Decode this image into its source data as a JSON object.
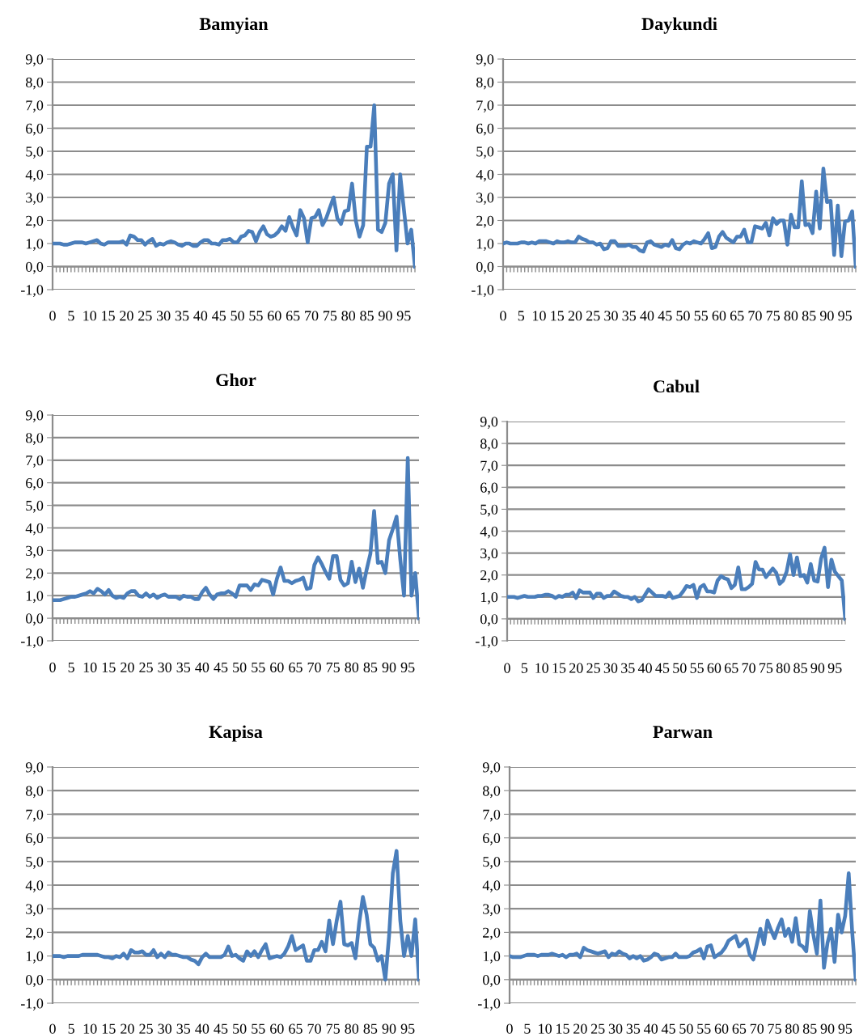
{
  "chart_data": [
    {
      "type": "line",
      "title": "Bamyian",
      "grid": "y",
      "line_style": "solid",
      "marker": "none",
      "ylim": [
        -1,
        9
      ],
      "yticks": [
        {
          "value": -1,
          "label": "-1,0"
        },
        {
          "value": 0,
          "label": "0,0"
        },
        {
          "value": 1,
          "label": "1,0"
        },
        {
          "value": 2,
          "label": "2,0"
        },
        {
          "value": 3,
          "label": "3,0"
        },
        {
          "value": 4,
          "label": "4,0"
        },
        {
          "value": 5,
          "label": "5,0"
        },
        {
          "value": 6,
          "label": "6,0"
        },
        {
          "value": 7,
          "label": "7,0"
        },
        {
          "value": 8,
          "label": "8,0"
        },
        {
          "value": 9,
          "label": "9,0"
        }
      ],
      "categories": [
        "0",
        null,
        null,
        null,
        null,
        "5",
        null,
        null,
        null,
        null,
        "10",
        null,
        null,
        null,
        null,
        "15",
        null,
        null,
        null,
        null,
        "20",
        null,
        null,
        null,
        null,
        "25",
        null,
        null,
        null,
        null,
        "30",
        null,
        null,
        null,
        null,
        "35",
        null,
        null,
        null,
        null,
        "40",
        null,
        null,
        null,
        null,
        "45",
        null,
        null,
        null,
        null,
        "50",
        null,
        null,
        null,
        null,
        "55",
        null,
        null,
        null,
        null,
        "60",
        null,
        null,
        null,
        null,
        "65",
        null,
        null,
        null,
        null,
        "70",
        null,
        null,
        null,
        null,
        "75",
        null,
        null,
        null,
        null,
        "80",
        null,
        null,
        null,
        null,
        "85",
        null,
        null,
        null,
        null,
        "90",
        null,
        null,
        null,
        null,
        "95",
        null,
        null,
        null
      ],
      "series": [
        {
          "color": "#4a7ebb",
          "values": [
            1.0,
            1.0,
            1.0,
            0.95,
            0.95,
            1.0,
            1.05,
            1.05,
            1.05,
            1.0,
            1.05,
            1.1,
            1.15,
            1.0,
            0.95,
            1.05,
            1.05,
            1.05,
            1.05,
            1.1,
            0.95,
            1.35,
            1.3,
            1.15,
            1.15,
            0.95,
            1.1,
            1.2,
            0.9,
            1.0,
            0.95,
            1.05,
            1.1,
            1.05,
            0.95,
            0.9,
            1.0,
            1.0,
            0.9,
            0.9,
            1.05,
            1.15,
            1.15,
            1.0,
            1.0,
            0.95,
            1.15,
            1.15,
            1.2,
            1.05,
            1.05,
            1.3,
            1.35,
            1.55,
            1.5,
            1.1,
            1.5,
            1.75,
            1.4,
            1.3,
            1.35,
            1.5,
            1.75,
            1.55,
            2.15,
            1.7,
            1.35,
            2.45,
            2.1,
            1.05,
            2.1,
            2.15,
            2.45,
            1.8,
            2.1,
            2.55,
            3.0,
            2.1,
            1.85,
            2.4,
            2.45,
            3.6,
            2.0,
            1.3,
            1.8,
            5.2,
            5.2,
            7.0,
            1.6,
            1.5,
            1.9,
            3.6,
            4.0,
            0.7,
            4.0,
            2.5,
            1.0,
            1.6,
            0.0
          ]
        }
      ]
    },
    {
      "type": "line",
      "title": "Daykundi",
      "grid": "y",
      "line_style": "solid",
      "marker": "none",
      "ylim": [
        -1,
        9
      ],
      "yticks": [
        {
          "value": -1,
          "label": "-1,0"
        },
        {
          "value": 0,
          "label": "0,0"
        },
        {
          "value": 1,
          "label": "1,0"
        },
        {
          "value": 2,
          "label": "2,0"
        },
        {
          "value": 3,
          "label": "3,0"
        },
        {
          "value": 4,
          "label": "4,0"
        },
        {
          "value": 5,
          "label": "5,0"
        },
        {
          "value": 6,
          "label": "6,0"
        },
        {
          "value": 7,
          "label": "7,0"
        },
        {
          "value": 8,
          "label": "8,0"
        },
        {
          "value": 9,
          "label": "9,0"
        }
      ],
      "categories": [
        "0",
        null,
        null,
        null,
        null,
        "5",
        null,
        null,
        null,
        null,
        "10",
        null,
        null,
        null,
        null,
        "15",
        null,
        null,
        null,
        null,
        "20",
        null,
        null,
        null,
        null,
        "25",
        null,
        null,
        null,
        null,
        "30",
        null,
        null,
        null,
        null,
        "35",
        null,
        null,
        null,
        null,
        "40",
        null,
        null,
        null,
        null,
        "45",
        null,
        null,
        null,
        null,
        "50",
        null,
        null,
        null,
        null,
        "55",
        null,
        null,
        null,
        null,
        "60",
        null,
        null,
        null,
        null,
        "65",
        null,
        null,
        null,
        null,
        "70",
        null,
        null,
        null,
        null,
        "75",
        null,
        null,
        null,
        null,
        "80",
        null,
        null,
        null,
        null,
        "85",
        null,
        null,
        null,
        null,
        "90",
        null,
        null,
        null,
        null,
        "95",
        null,
        null,
        null
      ],
      "series": [
        {
          "color": "#4a7ebb",
          "values": [
            1.0,
            1.05,
            1.0,
            1.0,
            1.0,
            1.05,
            1.05,
            1.0,
            1.05,
            1.0,
            1.1,
            1.1,
            1.1,
            1.05,
            1.0,
            1.1,
            1.05,
            1.05,
            1.1,
            1.05,
            1.05,
            1.3,
            1.2,
            1.15,
            1.05,
            1.05,
            0.95,
            1.0,
            0.75,
            0.8,
            1.1,
            1.1,
            0.9,
            0.9,
            0.9,
            0.95,
            0.85,
            0.85,
            0.7,
            0.65,
            1.05,
            1.1,
            0.95,
            0.9,
            0.85,
            0.95,
            0.9,
            1.15,
            0.8,
            0.75,
            0.95,
            1.05,
            1.0,
            1.1,
            1.05,
            1.0,
            1.2,
            1.45,
            0.8,
            0.85,
            1.3,
            1.5,
            1.25,
            1.15,
            1.05,
            1.3,
            1.3,
            1.6,
            1.05,
            1.05,
            1.75,
            1.7,
            1.65,
            1.9,
            1.35,
            2.1,
            1.85,
            2.0,
            2.0,
            0.95,
            2.25,
            1.7,
            1.7,
            3.7,
            1.8,
            1.85,
            1.45,
            3.25,
            1.65,
            4.25,
            2.8,
            2.85,
            0.5,
            2.65,
            0.45,
            1.95,
            2.0,
            2.4,
            0.0
          ]
        }
      ]
    },
    {
      "type": "line",
      "title": "Ghor",
      "grid": "y",
      "line_style": "solid",
      "marker": "none",
      "ylim": [
        -1,
        9
      ],
      "yticks": [
        {
          "value": -1,
          "label": "-1,0"
        },
        {
          "value": 0,
          "label": "0,0"
        },
        {
          "value": 1,
          "label": "1,0"
        },
        {
          "value": 2,
          "label": "2,0"
        },
        {
          "value": 3,
          "label": "3,0"
        },
        {
          "value": 4,
          "label": "4,0"
        },
        {
          "value": 5,
          "label": "5,0"
        },
        {
          "value": 6,
          "label": "6,0"
        },
        {
          "value": 7,
          "label": "7,0"
        },
        {
          "value": 8,
          "label": "8,0"
        },
        {
          "value": 9,
          "label": "9,0"
        }
      ],
      "categories": [
        "0",
        null,
        null,
        null,
        null,
        "5",
        null,
        null,
        null,
        null,
        "10",
        null,
        null,
        null,
        null,
        "15",
        null,
        null,
        null,
        null,
        "20",
        null,
        null,
        null,
        null,
        "25",
        null,
        null,
        null,
        null,
        "30",
        null,
        null,
        null,
        null,
        "35",
        null,
        null,
        null,
        null,
        "40",
        null,
        null,
        null,
        null,
        "45",
        null,
        null,
        null,
        null,
        "50",
        null,
        null,
        null,
        null,
        "55",
        null,
        null,
        null,
        null,
        "60",
        null,
        null,
        null,
        null,
        "65",
        null,
        null,
        null,
        null,
        "70",
        null,
        null,
        null,
        null,
        "75",
        null,
        null,
        null,
        null,
        "80",
        null,
        null,
        null,
        null,
        "85",
        null,
        null,
        null,
        null,
        "90",
        null,
        null,
        null,
        null,
        "95",
        null,
        null,
        null
      ],
      "series": [
        {
          "color": "#4a7ebb",
          "values": [
            0.8,
            0.8,
            0.8,
            0.85,
            0.9,
            0.95,
            0.95,
            1.0,
            1.05,
            1.1,
            1.2,
            1.1,
            1.3,
            1.2,
            1.05,
            1.25,
            1.0,
            0.9,
            0.95,
            0.9,
            1.1,
            1.2,
            1.2,
            1.0,
            0.95,
            1.1,
            0.95,
            1.05,
            0.9,
            1.0,
            1.05,
            0.95,
            0.95,
            0.95,
            0.85,
            1.0,
            0.95,
            0.95,
            0.85,
            0.85,
            1.15,
            1.35,
            1.05,
            0.85,
            1.05,
            1.1,
            1.1,
            1.2,
            1.1,
            0.95,
            1.45,
            1.45,
            1.45,
            1.25,
            1.5,
            1.45,
            1.7,
            1.65,
            1.6,
            1.05,
            1.75,
            2.25,
            1.65,
            1.65,
            1.55,
            1.65,
            1.7,
            1.8,
            1.3,
            1.35,
            2.35,
            2.7,
            2.4,
            2.05,
            1.75,
            2.75,
            2.75,
            1.7,
            1.45,
            1.55,
            2.5,
            1.6,
            2.2,
            1.35,
            2.15,
            2.85,
            4.75,
            2.45,
            2.5,
            2.0,
            3.45,
            3.95,
            4.5,
            2.6,
            1.0,
            7.1,
            1.0,
            2.0,
            0.0
          ]
        }
      ]
    },
    {
      "type": "line",
      "title": "Cabul",
      "grid": "y",
      "line_style": "solid",
      "marker": "none",
      "ylim": [
        -1,
        9
      ],
      "yticks": [
        {
          "value": -1,
          "label": "-1,0"
        },
        {
          "value": 0,
          "label": "0,0"
        },
        {
          "value": 1,
          "label": "1,0"
        },
        {
          "value": 2,
          "label": "2,0"
        },
        {
          "value": 3,
          "label": "3,0"
        },
        {
          "value": 4,
          "label": "4,0"
        },
        {
          "value": 5,
          "label": "5,0"
        },
        {
          "value": 6,
          "label": "6,0"
        },
        {
          "value": 7,
          "label": "7,0"
        },
        {
          "value": 8,
          "label": "8,0"
        },
        {
          "value": 9,
          "label": "9,0"
        }
      ],
      "categories": [
        "0",
        null,
        null,
        null,
        null,
        "5",
        null,
        null,
        null,
        null,
        "10",
        null,
        null,
        null,
        null,
        "15",
        null,
        null,
        null,
        null,
        "20",
        null,
        null,
        null,
        null,
        "25",
        null,
        null,
        null,
        null,
        "30",
        null,
        null,
        null,
        null,
        "35",
        null,
        null,
        null,
        null,
        "40",
        null,
        null,
        null,
        null,
        "45",
        null,
        null,
        null,
        null,
        "50",
        null,
        null,
        null,
        null,
        "55",
        null,
        null,
        null,
        null,
        "60",
        null,
        null,
        null,
        null,
        "65",
        null,
        null,
        null,
        null,
        "70",
        null,
        null,
        null,
        null,
        "75",
        null,
        null,
        null,
        null,
        "80",
        null,
        null,
        null,
        null,
        "85",
        null,
        null,
        null,
        null,
        "90",
        null,
        null,
        null,
        null,
        "95",
        null,
        null,
        null
      ],
      "series": [
        {
          "color": "#4a7ebb",
          "values": [
            1.0,
            1.0,
            1.0,
            0.95,
            1.0,
            1.05,
            1.0,
            1.0,
            1.0,
            1.05,
            1.05,
            1.1,
            1.1,
            1.05,
            0.95,
            1.05,
            1.0,
            1.1,
            1.1,
            1.2,
            0.95,
            1.3,
            1.2,
            1.2,
            1.2,
            0.95,
            1.15,
            1.15,
            0.95,
            1.05,
            1.05,
            1.25,
            1.15,
            1.05,
            1.0,
            1.0,
            0.9,
            1.0,
            0.8,
            0.85,
            1.1,
            1.35,
            1.2,
            1.05,
            1.05,
            1.05,
            1.0,
            1.2,
            0.95,
            1.0,
            1.05,
            1.25,
            1.5,
            1.45,
            1.55,
            0.95,
            1.45,
            1.55,
            1.25,
            1.25,
            1.2,
            1.75,
            1.95,
            1.85,
            1.8,
            1.4,
            1.55,
            2.35,
            1.35,
            1.35,
            1.45,
            1.6,
            2.6,
            2.25,
            2.25,
            1.9,
            2.1,
            2.3,
            2.1,
            1.6,
            1.75,
            2.15,
            2.95,
            2.0,
            2.8,
            1.95,
            2.0,
            1.65,
            2.5,
            1.75,
            1.7,
            2.75,
            3.25,
            1.45,
            2.7,
            2.15,
            1.95,
            1.75,
            0.0
          ]
        }
      ]
    },
    {
      "type": "line",
      "title": "Kapisa",
      "grid": "y",
      "line_style": "solid",
      "marker": "none",
      "ylim": [
        -1,
        9
      ],
      "yticks": [
        {
          "value": -1,
          "label": "-1,0"
        },
        {
          "value": 0,
          "label": "0,0"
        },
        {
          "value": 1,
          "label": "1,0"
        },
        {
          "value": 2,
          "label": "2,0"
        },
        {
          "value": 3,
          "label": "3,0"
        },
        {
          "value": 4,
          "label": "4,0"
        },
        {
          "value": 5,
          "label": "5,0"
        },
        {
          "value": 6,
          "label": "6,0"
        },
        {
          "value": 7,
          "label": "7,0"
        },
        {
          "value": 8,
          "label": "8,0"
        },
        {
          "value": 9,
          "label": "9,0"
        }
      ],
      "categories": [
        "0",
        null,
        null,
        null,
        null,
        "5",
        null,
        null,
        null,
        null,
        "10",
        null,
        null,
        null,
        null,
        "15",
        null,
        null,
        null,
        null,
        "20",
        null,
        null,
        null,
        null,
        "25",
        null,
        null,
        null,
        null,
        "30",
        null,
        null,
        null,
        null,
        "35",
        null,
        null,
        null,
        null,
        "40",
        null,
        null,
        null,
        null,
        "45",
        null,
        null,
        null,
        null,
        "50",
        null,
        null,
        null,
        null,
        "55",
        null,
        null,
        null,
        null,
        "60",
        null,
        null,
        null,
        null,
        "65",
        null,
        null,
        null,
        null,
        "70",
        null,
        null,
        null,
        null,
        "75",
        null,
        null,
        null,
        null,
        "80",
        null,
        null,
        null,
        null,
        "85",
        null,
        null,
        null,
        null,
        "90",
        null,
        null,
        null,
        null,
        "95",
        null,
        null,
        null
      ],
      "series": [
        {
          "color": "#4a7ebb",
          "values": [
            1.0,
            1.0,
            1.0,
            0.95,
            1.0,
            1.0,
            1.0,
            1.0,
            1.05,
            1.05,
            1.05,
            1.05,
            1.05,
            1.0,
            0.95,
            0.95,
            0.9,
            1.0,
            0.95,
            1.1,
            0.9,
            1.25,
            1.15,
            1.15,
            1.2,
            1.05,
            1.05,
            1.25,
            0.95,
            1.1,
            0.95,
            1.15,
            1.05,
            1.05,
            1.0,
            0.95,
            0.95,
            0.85,
            0.8,
            0.65,
            0.95,
            1.1,
            0.95,
            0.95,
            0.95,
            0.95,
            1.05,
            1.4,
            1.0,
            1.05,
            0.9,
            0.8,
            1.2,
            1.0,
            1.2,
            0.95,
            1.25,
            1.5,
            0.9,
            0.95,
            1.0,
            0.95,
            1.1,
            1.4,
            1.85,
            1.25,
            1.35,
            1.45,
            0.8,
            0.8,
            1.25,
            1.25,
            1.6,
            1.2,
            2.5,
            1.5,
            2.5,
            3.3,
            1.5,
            1.45,
            1.55,
            0.9,
            2.4,
            3.5,
            2.75,
            1.5,
            1.35,
            0.8,
            1.0,
            0.0,
            1.85,
            4.5,
            5.45,
            2.5,
            1.0,
            1.85,
            1.0,
            2.55,
            0.0
          ]
        }
      ]
    },
    {
      "type": "line",
      "title": "Parwan",
      "grid": "y",
      "line_style": "solid",
      "marker": "none",
      "ylim": [
        -1,
        9
      ],
      "yticks": [
        {
          "value": -1,
          "label": "-1,0"
        },
        {
          "value": 0,
          "label": "0,0"
        },
        {
          "value": 1,
          "label": "1,0"
        },
        {
          "value": 2,
          "label": "2,0"
        },
        {
          "value": 3,
          "label": "3,0"
        },
        {
          "value": 4,
          "label": "4,0"
        },
        {
          "value": 5,
          "label": "5,0"
        },
        {
          "value": 6,
          "label": "6,0"
        },
        {
          "value": 7,
          "label": "7,0"
        },
        {
          "value": 8,
          "label": "8,0"
        },
        {
          "value": 9,
          "label": "9,0"
        }
      ],
      "categories": [
        "0",
        null,
        null,
        null,
        null,
        "5",
        null,
        null,
        null,
        null,
        "10",
        null,
        null,
        null,
        null,
        "15",
        null,
        null,
        null,
        null,
        "20",
        null,
        null,
        null,
        null,
        "25",
        null,
        null,
        null,
        null,
        "30",
        null,
        null,
        null,
        null,
        "35",
        null,
        null,
        null,
        null,
        "40",
        null,
        null,
        null,
        null,
        "45",
        null,
        null,
        null,
        null,
        "50",
        null,
        null,
        null,
        null,
        "55",
        null,
        null,
        null,
        null,
        "60",
        null,
        null,
        null,
        null,
        "65",
        null,
        null,
        null,
        null,
        "70",
        null,
        null,
        null,
        null,
        "75",
        null,
        null,
        null,
        null,
        "80",
        null,
        null,
        null,
        null,
        "85",
        null,
        null,
        null,
        null,
        "90",
        null,
        null,
        null,
        null,
        "95",
        null,
        null,
        null
      ],
      "series": [
        {
          "color": "#4a7ebb",
          "values": [
            1.0,
            0.95,
            0.95,
            0.95,
            1.0,
            1.05,
            1.05,
            1.05,
            1.0,
            1.05,
            1.05,
            1.05,
            1.1,
            1.05,
            1.0,
            1.05,
            0.95,
            1.05,
            1.05,
            1.1,
            0.95,
            1.35,
            1.25,
            1.2,
            1.15,
            1.1,
            1.15,
            1.2,
            0.95,
            1.1,
            1.05,
            1.2,
            1.1,
            1.05,
            0.9,
            1.0,
            0.9,
            1.0,
            0.8,
            0.85,
            0.95,
            1.1,
            1.05,
            0.85,
            0.9,
            0.95,
            0.95,
            1.1,
            0.95,
            0.95,
            0.95,
            1.0,
            1.15,
            1.2,
            1.3,
            0.9,
            1.4,
            1.45,
            0.95,
            1.05,
            1.15,
            1.35,
            1.65,
            1.75,
            1.85,
            1.4,
            1.55,
            1.7,
            1.05,
            0.85,
            1.5,
            2.15,
            1.5,
            2.5,
            2.1,
            1.75,
            2.2,
            2.55,
            1.85,
            2.15,
            1.6,
            2.6,
            1.5,
            1.4,
            1.2,
            2.9,
            1.9,
            1.1,
            3.35,
            0.5,
            1.55,
            2.15,
            0.75,
            2.75,
            2.0,
            2.7,
            4.5,
            2.0,
            0.0
          ]
        }
      ]
    }
  ]
}
